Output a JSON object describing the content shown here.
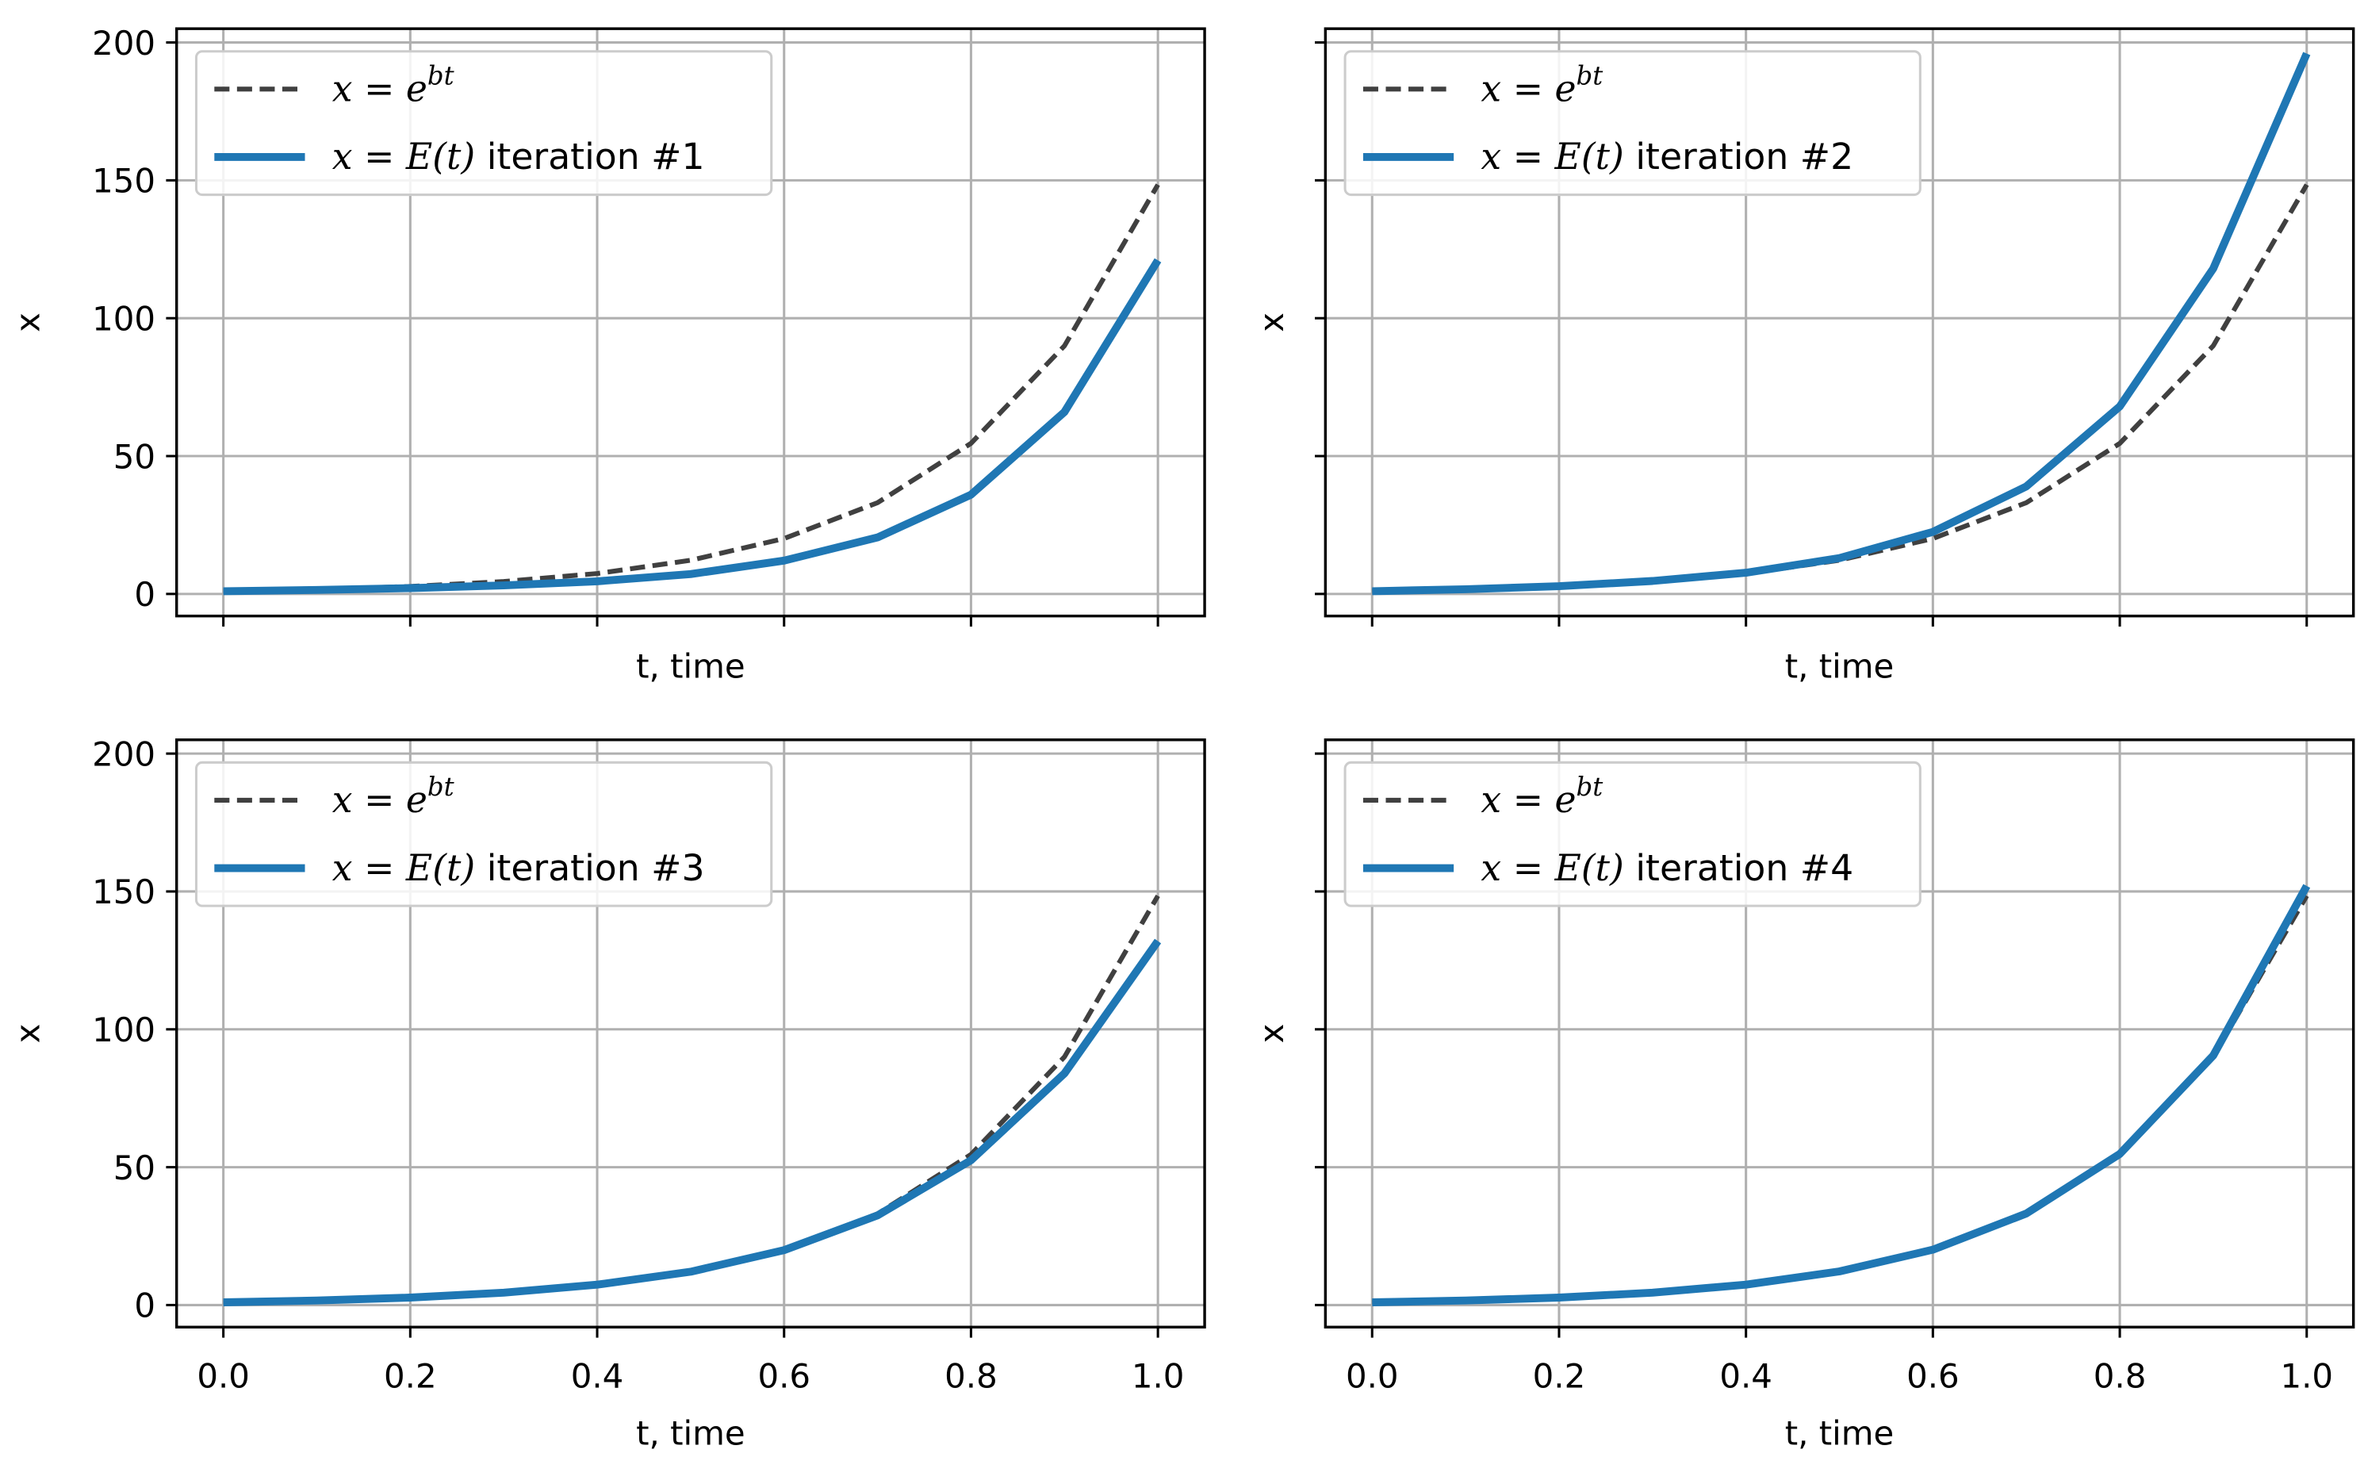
{
  "colors": {
    "exact": "#404040",
    "approx": "#1f77b4",
    "grid": "#b0b0b0",
    "frame": "#000000",
    "legend_edge": "#cccccc"
  },
  "chart_data": [
    {
      "type": "line",
      "panel": "top-left",
      "xlabel": "t, time",
      "ylabel": "x",
      "xlim": [
        -0.05,
        1.05
      ],
      "ylim": [
        -8,
        205
      ],
      "xticks": [
        "0.0",
        "0.2",
        "0.4",
        "0.6",
        "0.8",
        "1.0"
      ],
      "yticks": [
        "0",
        "50",
        "100",
        "150",
        "200"
      ],
      "show_xticklabels": false,
      "show_yticklabels": true,
      "grid": true,
      "legend": "top-left",
      "x": [
        0.0,
        0.1,
        0.2,
        0.3,
        0.4,
        0.5,
        0.6,
        0.7,
        0.8,
        0.9,
        1.0
      ],
      "series": [
        {
          "name": "exact",
          "style": "dashed",
          "legend_label": {
            "lhs": "x",
            "rel": " = ",
            "base": "e",
            "sup": "bt",
            "suffix": ""
          },
          "values": [
            1.0,
            1.65,
            2.72,
            4.5,
            7.4,
            12.2,
            20.1,
            33.1,
            54.6,
            90.0,
            148.4
          ]
        },
        {
          "name": "approx",
          "style": "solid",
          "legend_label": {
            "lhs": "x",
            "rel": " = ",
            "base": "E",
            "sup": "",
            "suffix": "(t)"
          },
          "legend_suffix": " iteration #1",
          "values": [
            1.0,
            1.45,
            2.1,
            3.1,
            4.6,
            7.2,
            12.1,
            20.5,
            36.0,
            66.0,
            121.0
          ]
        }
      ]
    },
    {
      "type": "line",
      "panel": "top-right",
      "xlabel": "t, time",
      "ylabel": "x",
      "xlim": [
        -0.05,
        1.05
      ],
      "ylim": [
        -8,
        205
      ],
      "xticks": [
        "0.0",
        "0.2",
        "0.4",
        "0.6",
        "0.8",
        "1.0"
      ],
      "yticks": [
        "0",
        "50",
        "100",
        "150",
        "200"
      ],
      "show_xticklabels": false,
      "show_yticklabels": false,
      "grid": true,
      "legend": "top-left",
      "x": [
        0.0,
        0.1,
        0.2,
        0.3,
        0.4,
        0.5,
        0.6,
        0.7,
        0.8,
        0.9,
        1.0
      ],
      "series": [
        {
          "name": "exact",
          "style": "dashed",
          "legend_label": {
            "lhs": "x",
            "rel": " = ",
            "base": "e",
            "sup": "bt",
            "suffix": ""
          },
          "values": [
            1.0,
            1.65,
            2.72,
            4.5,
            7.4,
            12.2,
            20.1,
            33.1,
            54.6,
            90.0,
            148.4
          ]
        },
        {
          "name": "approx",
          "style": "solid",
          "legend_label": {
            "lhs": "x",
            "rel": " = ",
            "base": "E",
            "sup": "",
            "suffix": "(t)"
          },
          "legend_suffix": " iteration #2",
          "values": [
            1.0,
            1.7,
            2.8,
            4.7,
            7.7,
            13.0,
            22.5,
            39.0,
            68.0,
            118.0,
            196.0
          ]
        }
      ]
    },
    {
      "type": "line",
      "panel": "bottom-left",
      "xlabel": "t, time",
      "ylabel": "x",
      "xlim": [
        -0.05,
        1.05
      ],
      "ylim": [
        -8,
        205
      ],
      "xticks": [
        "0.0",
        "0.2",
        "0.4",
        "0.6",
        "0.8",
        "1.0"
      ],
      "yticks": [
        "0",
        "50",
        "100",
        "150",
        "200"
      ],
      "show_xticklabels": true,
      "show_yticklabels": true,
      "grid": true,
      "legend": "top-left",
      "x": [
        0.0,
        0.1,
        0.2,
        0.3,
        0.4,
        0.5,
        0.6,
        0.7,
        0.8,
        0.9,
        1.0
      ],
      "series": [
        {
          "name": "exact",
          "style": "dashed",
          "legend_label": {
            "lhs": "x",
            "rel": " = ",
            "base": "e",
            "sup": "bt",
            "suffix": ""
          },
          "values": [
            1.0,
            1.65,
            2.72,
            4.5,
            7.4,
            12.2,
            20.1,
            33.1,
            54.6,
            90.0,
            148.4
          ]
        },
        {
          "name": "approx",
          "style": "solid",
          "legend_label": {
            "lhs": "x",
            "rel": " = ",
            "base": "E",
            "sup": "",
            "suffix": "(t)"
          },
          "legend_suffix": " iteration #3",
          "values": [
            1.0,
            1.65,
            2.72,
            4.5,
            7.4,
            12.1,
            19.9,
            32.5,
            52.5,
            84.0,
            132.0
          ]
        }
      ]
    },
    {
      "type": "line",
      "panel": "bottom-right",
      "xlabel": "t, time",
      "ylabel": "x",
      "xlim": [
        -0.05,
        1.05
      ],
      "ylim": [
        -8,
        205
      ],
      "xticks": [
        "0.0",
        "0.2",
        "0.4",
        "0.6",
        "0.8",
        "1.0"
      ],
      "yticks": [
        "0",
        "50",
        "100",
        "150",
        "200"
      ],
      "show_xticklabels": true,
      "show_yticklabels": false,
      "grid": true,
      "legend": "top-left",
      "x": [
        0.0,
        0.1,
        0.2,
        0.3,
        0.4,
        0.5,
        0.6,
        0.7,
        0.8,
        0.9,
        1.0
      ],
      "series": [
        {
          "name": "exact",
          "style": "dashed",
          "legend_label": {
            "lhs": "x",
            "rel": " = ",
            "base": "e",
            "sup": "bt",
            "suffix": ""
          },
          "values": [
            1.0,
            1.65,
            2.72,
            4.5,
            7.4,
            12.2,
            20.1,
            33.1,
            54.6,
            90.0,
            148.4
          ]
        },
        {
          "name": "approx",
          "style": "solid",
          "legend_label": {
            "lhs": "x",
            "rel": " = ",
            "base": "E",
            "sup": "",
            "suffix": "(t)"
          },
          "legend_suffix": " iteration #4",
          "values": [
            1.0,
            1.65,
            2.72,
            4.5,
            7.4,
            12.2,
            20.1,
            33.2,
            54.8,
            90.5,
            152.0
          ]
        }
      ]
    }
  ]
}
